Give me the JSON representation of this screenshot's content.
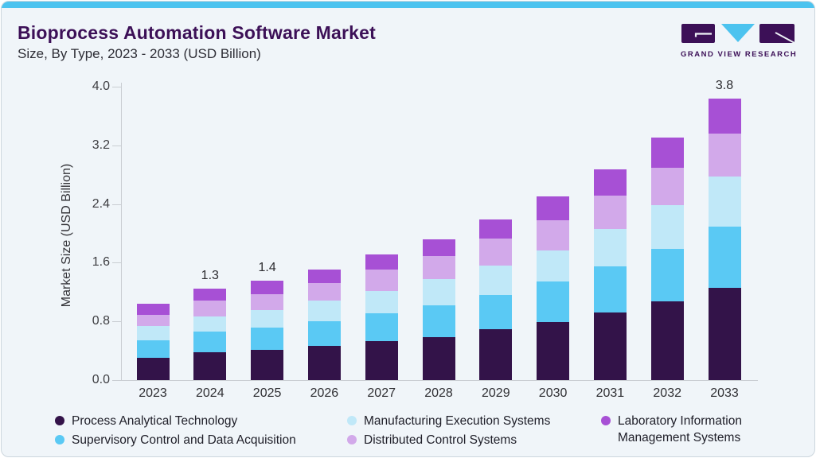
{
  "header": {
    "title": "Bioprocess Automation Software Market",
    "subtitle": "Size, By Type, 2023 - 2033 (USD Billion)",
    "brand": {
      "name": "GRAND VIEW RESEARCH"
    }
  },
  "theme": {
    "accent_cyan": "#4cc3ef",
    "brand_purple": "#3c1057",
    "card_background": "#f0f5f9",
    "axis_line_color": "#c9cdd2"
  },
  "chart_data": {
    "type": "bar",
    "stacked": true,
    "title": "Bioprocess Automation Software Market Size, By Type, 2023 - 2033 (USD Billion)",
    "xlabel": "",
    "ylabel": "Market Size (USD Billion)",
    "ylim": [
      0,
      4.0
    ],
    "ytick_labels": [
      "0.0",
      "0.8",
      "1.6",
      "2.4",
      "3.2",
      "4.0"
    ],
    "grid": false,
    "legend_position": "bottom",
    "categories": [
      "2023",
      "2024",
      "2025",
      "2026",
      "2027",
      "2028",
      "2029",
      "2030",
      "2031",
      "2032",
      "2033"
    ],
    "bar_labels": [
      "",
      "1.3",
      "1.4",
      "",
      "",
      "",
      "",
      "",
      "",
      "",
      "3.8"
    ],
    "series": [
      {
        "name": "Process Analytical Technology",
        "color": "#331349",
        "values": [
          0.3,
          0.38,
          0.41,
          0.47,
          0.53,
          0.59,
          0.69,
          0.79,
          0.92,
          1.07,
          1.26
        ]
      },
      {
        "name": "Supervisory Control and Data Acquisition",
        "color": "#5ac9f4",
        "values": [
          0.24,
          0.28,
          0.31,
          0.33,
          0.38,
          0.43,
          0.47,
          0.55,
          0.63,
          0.72,
          0.83
        ]
      },
      {
        "name": "Manufacturing Execution Systems",
        "color": "#c0e8f8",
        "values": [
          0.2,
          0.21,
          0.23,
          0.28,
          0.3,
          0.36,
          0.4,
          0.43,
          0.51,
          0.59,
          0.69
        ]
      },
      {
        "name": "Distributed Control Systems",
        "color": "#d2a9ea",
        "values": [
          0.15,
          0.21,
          0.22,
          0.24,
          0.3,
          0.31,
          0.37,
          0.41,
          0.45,
          0.51,
          0.58
        ]
      },
      {
        "name": "Laboratory Information Management Systems",
        "color": "#a750d5",
        "values": [
          0.15,
          0.17,
          0.18,
          0.19,
          0.2,
          0.23,
          0.26,
          0.32,
          0.36,
          0.42,
          0.48
        ]
      }
    ],
    "totals_approx": [
      1.04,
      1.25,
      1.35,
      1.51,
      1.71,
      1.92,
      2.19,
      2.5,
      2.87,
      3.31,
      3.84
    ]
  }
}
